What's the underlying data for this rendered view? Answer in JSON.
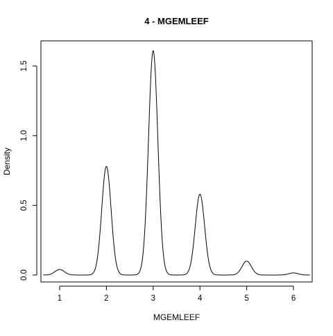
{
  "chart_data": {
    "type": "line",
    "title": "4 - MGEMLEEF",
    "xlabel": "MGEMLEEF",
    "ylabel": "Density",
    "xlim": [
      0.6,
      6.4
    ],
    "ylim": [
      -0.05,
      1.68
    ],
    "x_ticks": [
      1,
      2,
      3,
      4,
      5,
      6
    ],
    "x_tick_labels": [
      "1",
      "2",
      "3",
      "4",
      "5",
      "6"
    ],
    "y_ticks": [
      0.0,
      0.5,
      1.0,
      1.5
    ],
    "y_tick_labels": [
      "0.0",
      "0.5",
      "1.0",
      "1.5"
    ],
    "grid": false,
    "line_color": "#000000",
    "x_range": [
      0.65,
      6.35
    ],
    "series": [
      {
        "peaks": [
          {
            "x": 1,
            "density": 0.04
          },
          {
            "x": 2,
            "density": 0.78
          },
          {
            "x": 3,
            "density": 1.61
          },
          {
            "x": 4,
            "density": 0.58
          },
          {
            "x": 5,
            "density": 0.1
          },
          {
            "x": 6,
            "density": 0.015
          }
        ],
        "peak_width_sd": 0.1
      }
    ]
  }
}
